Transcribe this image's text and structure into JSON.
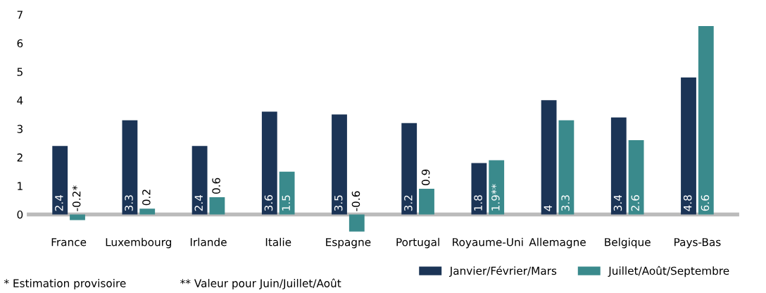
{
  "chart_data": {
    "type": "bar",
    "categories": [
      "France",
      "Luxembourg",
      "Irlande",
      "Italie",
      "Espagne",
      "Portugal",
      "Royaume-Uni",
      "Allemagne",
      "Belgique",
      "Pays-Bas"
    ],
    "series": [
      {
        "name": "Janvier/Février/Mars",
        "color": "#1b3456",
        "values": [
          2.4,
          3.3,
          2.4,
          3.6,
          3.5,
          3.2,
          1.8,
          4,
          3.4,
          4.8
        ],
        "value_labels": [
          "2.4",
          "3.3",
          "2.4",
          "3.6",
          "3.5",
          "3.2",
          "1.8",
          "4",
          "3.4",
          "4.8"
        ]
      },
      {
        "name": "Juillet/Août/Septembre",
        "color": "#3a8a8c",
        "values": [
          -0.2,
          0.2,
          0.6,
          1.5,
          -0.6,
          0.9,
          1.9,
          3.3,
          2.6,
          6.6
        ],
        "value_labels": [
          "-0.2*",
          "0.2",
          "0.6",
          "1.5",
          "-0.6",
          "0.9",
          "1.9**",
          "3.3",
          "2.6",
          "6.6"
        ]
      }
    ],
    "ylim": [
      -0.7,
      7
    ],
    "yticks": [
      0,
      1,
      2,
      3,
      4,
      5,
      6,
      7
    ],
    "grid": false,
    "legend": "bottom",
    "annotations": [
      "* Estimation provisoire",
      "** Valeur pour Juin/Juillet/Août"
    ]
  }
}
